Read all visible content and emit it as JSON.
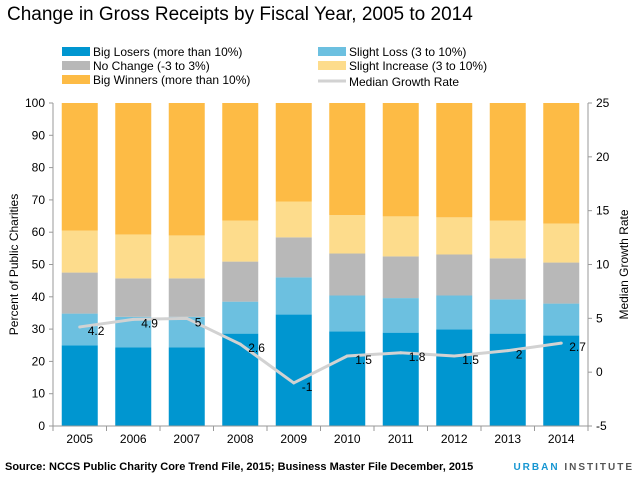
{
  "chart_data": {
    "type": "bar",
    "stacked": true,
    "title": "Change in Gross Receipts by Fiscal Year, 2005 to 2014",
    "categories": [
      "2005",
      "2006",
      "2007",
      "2008",
      "2009",
      "2010",
      "2011",
      "2012",
      "2013",
      "2014"
    ],
    "ylabel": "Percent of Public Charities",
    "y2label": "Median Growth Rate",
    "ylim": [
      0,
      100
    ],
    "y2lim": [
      -5,
      25
    ],
    "yticks": [
      0,
      10,
      20,
      30,
      40,
      50,
      60,
      70,
      80,
      90,
      100
    ],
    "y2ticks": [
      -5,
      0,
      5,
      10,
      15,
      20,
      25
    ],
    "grid": false,
    "legend_position": "top",
    "series": [
      {
        "name": "Big Losers (more than 10%)",
        "color": "#0096d0",
        "values": [
          25,
          24.3,
          24.3,
          28.6,
          34.5,
          29.3,
          28.9,
          29.9,
          28.6,
          28
        ]
      },
      {
        "name": "Slight Loss (3 to 10%)",
        "color": "#6cc0e0",
        "values": [
          9.8,
          9.5,
          9.5,
          9.9,
          11.5,
          11.1,
          10.7,
          10.5,
          10.6,
          9.9
        ]
      },
      {
        "name": "No Change (-3 to 3%)",
        "color": "#b8b8b8",
        "values": [
          12.7,
          11.9,
          11.9,
          12.4,
          12.4,
          13,
          12.9,
          12.7,
          12.7,
          12.7
        ]
      },
      {
        "name": "Slight Increase (3 to 10%)",
        "color": "#fddc8c",
        "values": [
          13,
          13.6,
          13.3,
          12.7,
          11.1,
          11.9,
          12.4,
          11.5,
          11.7,
          12.1
        ]
      },
      {
        "name": "Big Winners (more than 10%)",
        "color": "#fdbb45",
        "values": [
          39.5,
          40.7,
          41,
          36.4,
          30.5,
          34.7,
          35.1,
          35.4,
          36.4,
          37.3
        ]
      }
    ],
    "line": {
      "name": "Median Growth Rate",
      "color": "#d2d2d2",
      "axis": "right",
      "values": [
        4.2,
        4.9,
        5,
        2.6,
        -1,
        1.5,
        1.8,
        1.5,
        2,
        2.7
      ],
      "labels": [
        "4.2",
        "4.9",
        "5",
        "2.6",
        "-1",
        "1.5",
        "1.8",
        "1.5",
        "2",
        "2.7"
      ]
    }
  },
  "source": "Source: NCCS Public Charity Core Trend File, 2015; Business Master File December, 2015",
  "logo": {
    "part1": "URBAN",
    "part2": "INSTITUTE"
  }
}
